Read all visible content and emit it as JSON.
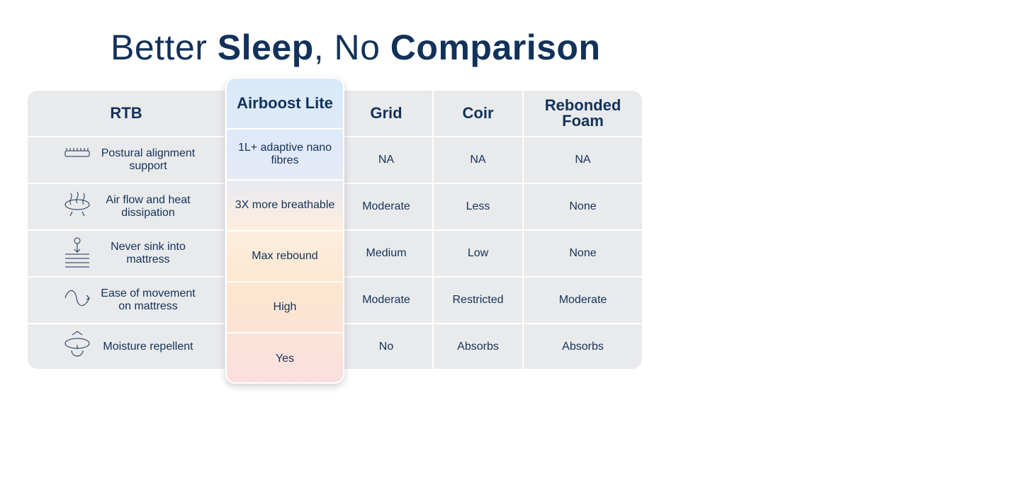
{
  "title": {
    "parts": [
      "Better ",
      "Sleep",
      ", No ",
      "Comparison"
    ]
  },
  "table": {
    "header": [
      "RTB",
      "Airboost Lite",
      "Grid",
      "Coir",
      "Rebonded Foam"
    ],
    "rows": [
      [
        "Postural alignment support",
        "1L+ adaptive nano fibres",
        "NA",
        "NA",
        "NA"
      ],
      [
        "Air flow and heat dissipation",
        "3X more breathable",
        "Moderate",
        "Less",
        "None"
      ],
      [
        "Never sink into mattress",
        "Max rebound",
        "Medium",
        "Low",
        "None"
      ],
      [
        "Ease of movement on mattress",
        "High",
        "Moderate",
        "Restricted",
        "Moderate"
      ],
      [
        "Moisture repellent",
        "Yes",
        "No",
        "Absorbs",
        "Absorbs"
      ]
    ]
  }
}
